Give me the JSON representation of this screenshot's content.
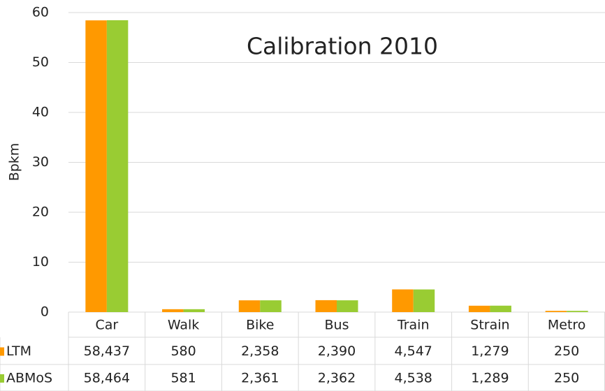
{
  "chart_data": {
    "type": "bar",
    "title": "Calibration 2010",
    "y_label": "Bpkm",
    "categories": [
      "Car",
      "Walk",
      "Bike",
      "Bus",
      "Train",
      "Strain",
      "Metro"
    ],
    "series": [
      {
        "name": "LTM",
        "color": "#ff9900",
        "values": [
          58.437,
          0.58,
          2.358,
          2.39,
          4.547,
          1.279,
          0.25
        ],
        "value_labels": [
          "58,437",
          "580",
          "2,358",
          "2,390",
          "4,547",
          "1,279",
          "250"
        ]
      },
      {
        "name": "ABMoS",
        "color": "#99cc33",
        "values": [
          58.464,
          0.581,
          2.361,
          2.362,
          4.538,
          1.289,
          0.25
        ],
        "value_labels": [
          "58,464",
          "581",
          "2,361",
          "2,362",
          "4,538",
          "1,289",
          "250"
        ]
      }
    ],
    "ylim": [
      0,
      60
    ],
    "yticks": [
      0,
      10,
      20,
      30,
      40,
      50,
      60
    ],
    "grid": true
  }
}
